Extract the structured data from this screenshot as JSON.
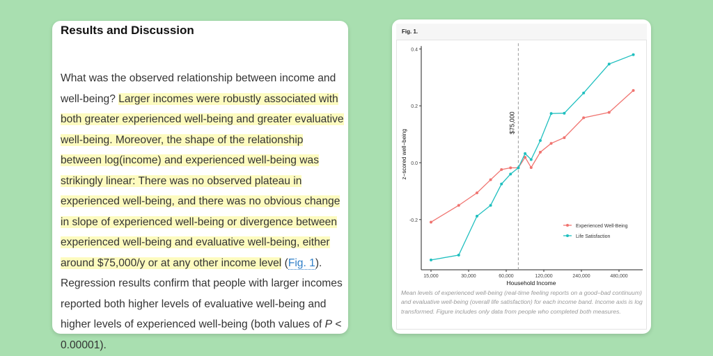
{
  "article": {
    "heading": "Results and Discussion",
    "lines": [
      [
        "What was the observed relationship between income and"
      ],
      [
        "well-being? ",
        "Larger incomes were robustly associated with"
      ],
      [
        "both greater experienced well-being and greater evaluative"
      ],
      [
        "well-being. Moreover, the shape of the relationship"
      ],
      [
        "between log(income) and experienced well-being was"
      ],
      [
        "strikingly linear: There was no observed plateau in"
      ],
      [
        "experienced well-being, and there was no obvious change"
      ],
      [
        "in slope of experienced well-being or divergence between"
      ],
      [
        "experienced well-being and evaluative well-being, either"
      ],
      [
        "around $75,000/y or at any other income level",
        " (",
        "Fig. 1",
        ")."
      ],
      [
        "Regression results confirm that people with larger incomes"
      ],
      [
        "reported both higher levels of evaluative well-being and"
      ],
      [
        "higher levels of experienced well-being (both values of ",
        "P",
        " <"
      ],
      [
        "0.00001)."
      ]
    ],
    "highlight_color": "#fdfbbf"
  },
  "figure": {
    "label": "Fig. 1.",
    "caption": "Mean levels of experienced well-being (real-time feeling reports on a good–bad continuum) and evaluative well-being (overall life satisfaction) for each income band. Income axis is log transformed. Figure includes only data from people who completed both measures."
  },
  "chart_data": {
    "type": "line",
    "xlabel": "Household Income",
    "ylabel": "z−scored well−being",
    "xscale": "log",
    "xticks": [
      15000,
      30000,
      60000,
      120000,
      240000,
      480000
    ],
    "xtick_labels": [
      "15,000",
      "30,000",
      "60,000",
      "120,000",
      "240,000",
      "480,000"
    ],
    "yticks": [
      -0.2,
      0.0,
      0.2,
      0.4
    ],
    "ytick_labels": [
      "-0.2",
      "0.0",
      "0.2",
      "0.4"
    ],
    "ylim": [
      -0.37,
      0.41
    ],
    "x": [
      15000,
      25000,
      35000,
      45000,
      55000,
      65000,
      75000,
      85000,
      95000,
      112500,
      137500,
      175000,
      250000,
      400000,
      625000
    ],
    "series": [
      {
        "name": "Experienced Well-Being",
        "color": "#f07470",
        "values": [
          -0.209,
          -0.15,
          -0.106,
          -0.06,
          -0.024,
          -0.018,
          -0.018,
          0.019,
          -0.017,
          0.037,
          0.068,
          0.088,
          0.158,
          0.177,
          0.254
        ]
      },
      {
        "name": "Life Satisfaction",
        "color": "#1fbfbf",
        "values": [
          -0.342,
          -0.325,
          -0.188,
          -0.15,
          -0.075,
          -0.04,
          -0.018,
          0.032,
          0.011,
          0.078,
          0.173,
          0.174,
          0.245,
          0.347,
          0.38
        ]
      }
    ],
    "vline": {
      "x": 75000,
      "label": "$75,000"
    },
    "legend": "bottom-right"
  }
}
